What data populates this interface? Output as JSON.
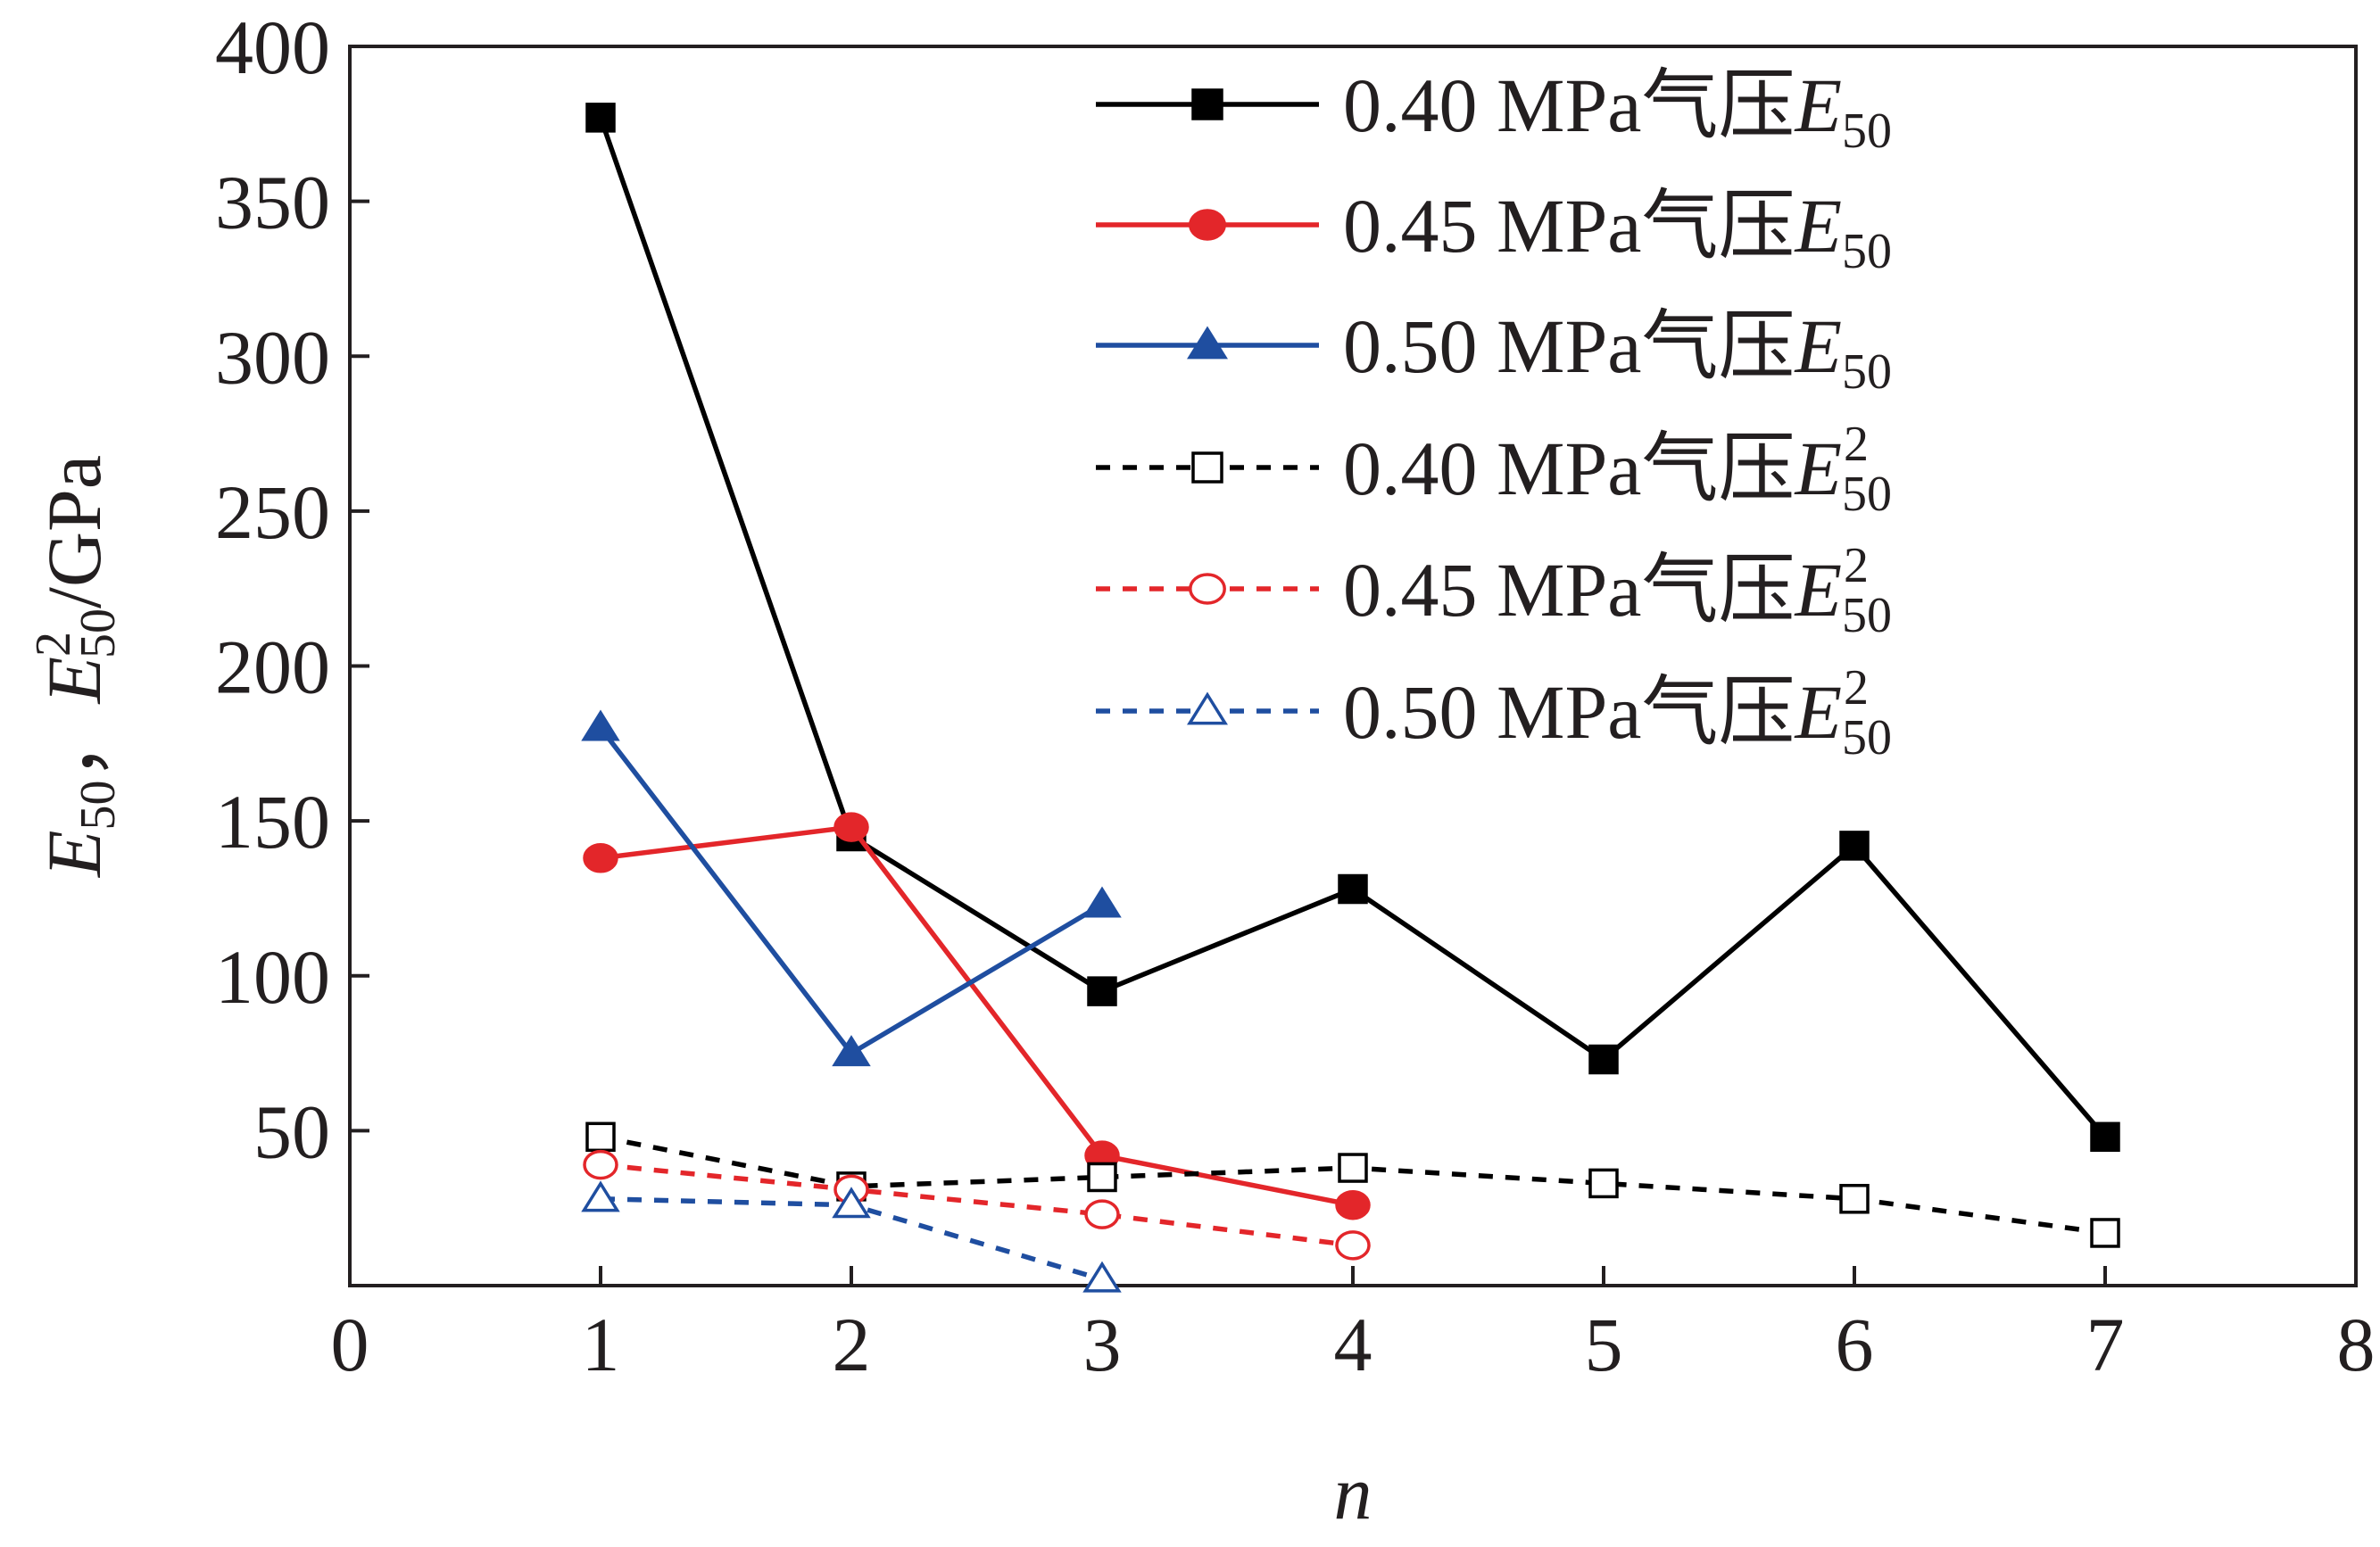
{
  "chart_data": {
    "type": "line",
    "xlabel": "n",
    "ylabel": {
      "main": "E",
      "sub": "50",
      "sep": "，",
      "main2": "E",
      "sup2": "2",
      "sub2": "50",
      "unit": "/GPa"
    },
    "xlim": [
      0,
      8
    ],
    "ylim": [
      0,
      400
    ],
    "x_ticks": [
      0,
      1,
      2,
      3,
      4,
      5,
      6,
      7,
      8
    ],
    "y_ticks": [
      50,
      100,
      150,
      200,
      250,
      300,
      350,
      400
    ],
    "x_tick_labels": [
      "0",
      "1",
      "2",
      "3",
      "4",
      "5",
      "6",
      "7",
      "8"
    ],
    "y_tick_labels": [
      "50",
      "100",
      "150",
      "200",
      "250",
      "300",
      "350",
      "400"
    ],
    "grid": false,
    "legend_position": "top-right",
    "series": [
      {
        "legend": {
          "prefix": "0.40 MPa气压",
          "symbol": "E",
          "sub": "50",
          "sup": ""
        },
        "color": "#000000",
        "dash": "solid",
        "marker": "square",
        "filled": true,
        "x": [
          1,
          2,
          3,
          4,
          5,
          6,
          7
        ],
        "y": [
          377,
          145,
          95,
          128,
          73,
          142,
          48
        ]
      },
      {
        "legend": {
          "prefix": "0.45 MPa气压",
          "symbol": "E",
          "sub": "50",
          "sup": ""
        },
        "color": "#e3262a",
        "dash": "solid",
        "marker": "circle",
        "filled": true,
        "x": [
          1,
          2,
          3,
          4
        ],
        "y": [
          138,
          148,
          42,
          26
        ]
      },
      {
        "legend": {
          "prefix": "0.50 MPa气压",
          "symbol": "E",
          "sub": "50",
          "sup": ""
        },
        "color": "#1f4ea0",
        "dash": "solid",
        "marker": "triangle",
        "filled": true,
        "x": [
          1,
          2,
          3
        ],
        "y": [
          180,
          75,
          123
        ]
      },
      {
        "legend": {
          "prefix": "0.40 MPa气压",
          "symbol": "E",
          "sub": "50",
          "sup": "2"
        },
        "color": "#000000",
        "dash": "dashed",
        "marker": "square",
        "filled": false,
        "x": [
          1,
          2,
          3,
          4,
          5,
          6,
          7
        ],
        "y": [
          48,
          32,
          35,
          38,
          33,
          28,
          17
        ]
      },
      {
        "legend": {
          "prefix": "0.45 MPa气压",
          "symbol": "E",
          "sub": "50",
          "sup": "2"
        },
        "color": "#e3262a",
        "dash": "dashed",
        "marker": "circle",
        "filled": false,
        "x": [
          1,
          2,
          3,
          4
        ],
        "y": [
          39,
          31,
          23,
          13
        ]
      },
      {
        "legend": {
          "prefix": "0.50 MPa气压",
          "symbol": "E",
          "sub": "50",
          "sup": "2"
        },
        "color": "#1f4ea0",
        "dash": "dashed",
        "marker": "triangle",
        "filled": false,
        "x": [
          1,
          2,
          3
        ],
        "y": [
          28,
          26,
          2
        ]
      }
    ]
  }
}
